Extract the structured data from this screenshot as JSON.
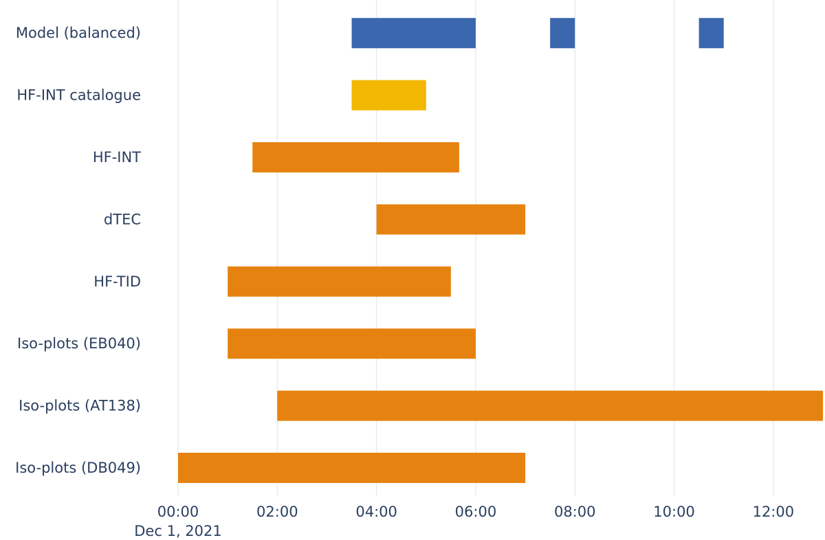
{
  "chart_data": {
    "type": "bar",
    "orientation": "horizontal-timeline",
    "x_axis": {
      "ticks": [
        "00:00",
        "02:00",
        "04:00",
        "06:00",
        "08:00",
        "10:00",
        "12:00"
      ],
      "date_label": "Dec 1, 2021",
      "range": [
        "00:00",
        "13:00"
      ]
    },
    "grid": true,
    "categories": [
      "Model (balanced)",
      "HF-INT catalogue",
      "HF-INT",
      "dTEC",
      "HF-TID",
      "Iso-plots (EB040)",
      "Iso-plots (AT138)",
      "Iso-plots (DB049)"
    ],
    "bars": [
      {
        "category": "Model (balanced)",
        "start": "03:30",
        "end": "06:00",
        "color": "#3b67ae"
      },
      {
        "category": "Model (balanced)",
        "start": "07:30",
        "end": "08:00",
        "color": "#3b67ae"
      },
      {
        "category": "Model (balanced)",
        "start": "10:30",
        "end": "11:00",
        "color": "#3b67ae"
      },
      {
        "category": "HF-INT catalogue",
        "start": "03:30",
        "end": "05:00",
        "color": "#f2b701"
      },
      {
        "category": "HF-INT",
        "start": "01:30",
        "end": "05:40",
        "color": "#e68310"
      },
      {
        "category": "dTEC",
        "start": "04:00",
        "end": "07:00",
        "color": "#e68310"
      },
      {
        "category": "HF-TID",
        "start": "01:00",
        "end": "05:30",
        "color": "#e68310"
      },
      {
        "category": "Iso-plots (EB040)",
        "start": "01:00",
        "end": "06:00",
        "color": "#e68310"
      },
      {
        "category": "Iso-plots (AT138)",
        "start": "02:00",
        "end": "13:00",
        "color": "#e68310"
      },
      {
        "category": "Iso-plots (DB049)",
        "start": "00:00",
        "end": "07:00",
        "color": "#e68310"
      }
    ]
  }
}
